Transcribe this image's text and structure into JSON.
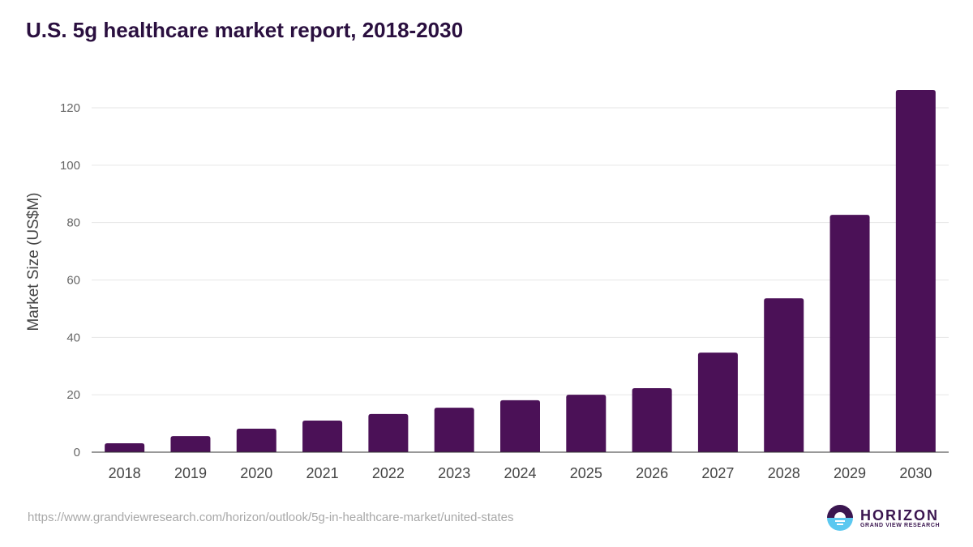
{
  "chart_data": {
    "type": "bar",
    "title": "U.S. 5g healthcare market report, 2018-2030",
    "xlabel": "",
    "ylabel": "Market Size (US$M)",
    "categories": [
      "2018",
      "2019",
      "2020",
      "2021",
      "2022",
      "2023",
      "2024",
      "2025",
      "2026",
      "2027",
      "2028",
      "2029",
      "2030"
    ],
    "values": [
      3.1,
      5.6,
      8.2,
      11.0,
      13.3,
      15.5,
      18.1,
      20.0,
      22.3,
      34.7,
      53.6,
      82.7,
      126.2
    ],
    "ylim": [
      0,
      120
    ],
    "yticks": [
      0,
      20,
      40,
      60,
      80,
      100,
      120
    ],
    "grid": true,
    "bar_color": "#4b1157"
  },
  "footer": {
    "source_url": "https://www.grandviewresearch.com/horizon/outlook/5g-in-healthcare-market/united-states",
    "logo_name": "HORIZON",
    "logo_sub": "GRAND VIEW RESEARCH"
  }
}
